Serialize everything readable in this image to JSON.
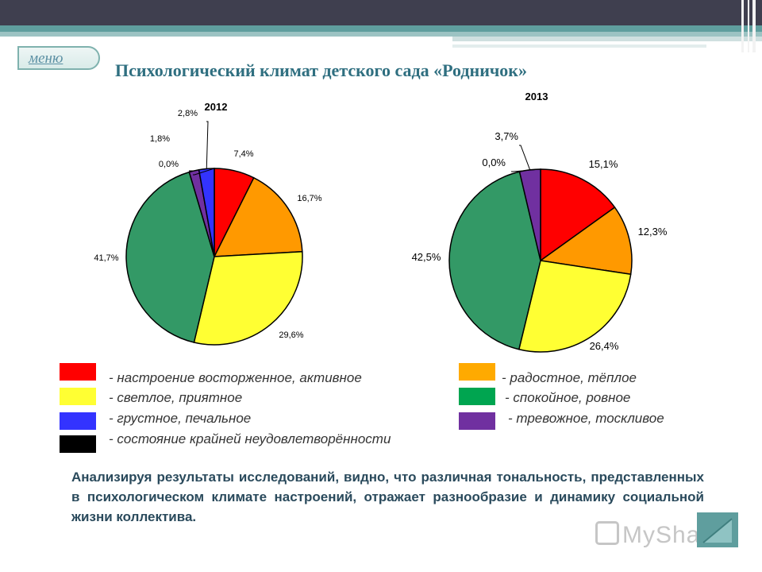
{
  "header": {
    "menu_label": "меню",
    "title": "Психологический климат детского сада «Родничок»"
  },
  "chart_data": [
    {
      "type": "pie",
      "title": "2012",
      "categories": [
        "- настроение восторженное, активное",
        "- радостное, тёплое",
        "- светлое, приятное",
        "- спокойное, ровное",
        "- тревожное, тоскливое",
        "- грустное, печальное",
        "- состояние крайней неудовлетворённости"
      ],
      "values": [
        7.4,
        16.7,
        29.6,
        41.7,
        1.8,
        2.8,
        0.0
      ],
      "labels": [
        "7,4%",
        "16,7%",
        "29,6%",
        "41,7%",
        "1,8%",
        "2,8%",
        "0,0%"
      ],
      "colors": [
        "#ff0000",
        "#ff9900",
        "#ffff33",
        "#339966",
        "#7030a0",
        "#3333ff",
        "#000000"
      ]
    },
    {
      "type": "pie",
      "title": "2013",
      "categories": [
        "- настроение восторженное, активное",
        "- радостное, тёплое",
        "- светлое, приятное",
        "- спокойное, ровное",
        "- тревожное, тоскливое",
        "- состояние крайней неудовлетворённости"
      ],
      "values": [
        15.1,
        12.3,
        26.4,
        42.5,
        3.7,
        0.0
      ],
      "labels": [
        "15,1%",
        "12,3%",
        "26,4%",
        "42,5%",
        "3,7%",
        "0,0%"
      ],
      "colors": [
        "#ff0000",
        "#ff9900",
        "#ffff33",
        "#339966",
        "#7030a0",
        "#000000"
      ]
    }
  ],
  "legend": [
    {
      "label": "- настроение восторженное, активное",
      "color": "#ff0000"
    },
    {
      "label": "- радостное, тёплое",
      "color": "#ff9900"
    },
    {
      "label": "- светлое, приятное",
      "color": "#ffff33"
    },
    {
      "label": "- спокойное, ровное",
      "color": "#00a550"
    },
    {
      "label": "- грустное, печальное",
      "color": "#3333ff"
    },
    {
      "label": "- тревожное, тоскливое",
      "color": "#7030a0"
    },
    {
      "label": "- состояние крайней неудовлетворённости",
      "color": "#000000"
    }
  ],
  "analysis_text": "Анализируя результаты исследований, видно, что различная тональность, представленных в психологическом климате настроений, отражает разнообразие и динамику социальной жизни коллектива.",
  "watermark": "MyShared"
}
